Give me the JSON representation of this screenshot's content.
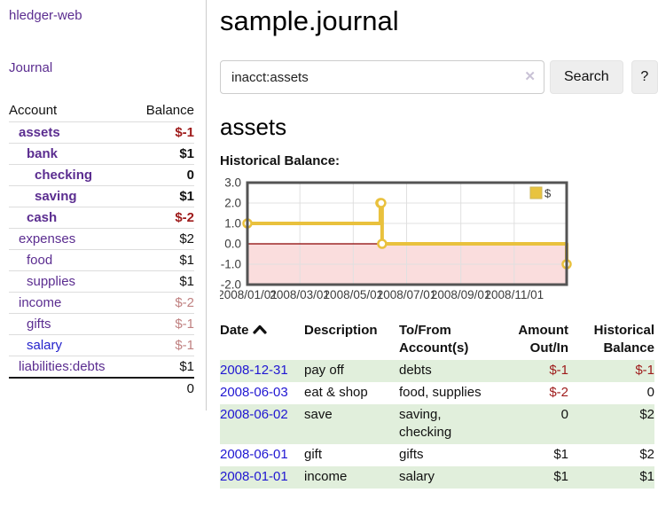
{
  "app": {
    "brand": "hledger-web",
    "nav": {
      "journal": "Journal"
    }
  },
  "colors": {
    "link_purple": "#5b2d90",
    "link_blue": "#2422cc",
    "date_blue": "#2017d2",
    "negative_strong": "#9e1a1a",
    "negative_soft": "#c08181",
    "row_green": "#e1efdc",
    "chart_gold": "#e9c13d",
    "chart_zero_line": "#8b0000",
    "chart_negative_region": "#fadddd"
  },
  "sidebar": {
    "columns": {
      "account": "Account",
      "balance": "Balance"
    },
    "rows": [
      {
        "name": "assets",
        "level": 1,
        "bold": true,
        "balance": "$-1",
        "balance_style": "neg-strong"
      },
      {
        "name": "bank",
        "level": 2,
        "bold": true,
        "balance": "$1",
        "balance_style": "normal"
      },
      {
        "name": "checking",
        "level": 3,
        "bold": true,
        "balance": "0",
        "balance_style": "normal"
      },
      {
        "name": "saving",
        "level": 3,
        "bold": true,
        "balance": "$1",
        "balance_style": "normal"
      },
      {
        "name": "cash",
        "level": 2,
        "bold": true,
        "balance": "$-2",
        "balance_style": "neg-strong"
      },
      {
        "name": "expenses",
        "level": 1,
        "bold": false,
        "balance": "$2",
        "balance_style": "normal"
      },
      {
        "name": "food",
        "level": 2,
        "bold": false,
        "balance": "$1",
        "balance_style": "normal"
      },
      {
        "name": "supplies",
        "level": 2,
        "bold": false,
        "balance": "$1",
        "balance_style": "normal"
      },
      {
        "name": "income",
        "level": 1,
        "bold": false,
        "balance": "$-2",
        "balance_style": "neg-soft"
      },
      {
        "name": "gifts",
        "level": 2,
        "bold": false,
        "balance": "$-1",
        "balance_style": "neg-soft"
      },
      {
        "name": "salary",
        "level": 2,
        "bold": false,
        "balance": "$-1",
        "balance_style": "neg-soft",
        "link_style": "blue"
      },
      {
        "name": "liabilities:debts",
        "level": 1,
        "bold": false,
        "balance": "$1",
        "balance_style": "normal"
      }
    ],
    "total": "0"
  },
  "main": {
    "title": "sample.journal",
    "search": {
      "value": "inacct:assets",
      "clear_icon": "✕",
      "button": "Search",
      "help_button": "?"
    },
    "account_heading": "assets",
    "chart_heading": "Historical Balance:"
  },
  "chart_data": {
    "type": "line",
    "step": true,
    "title": "Historical Balance:",
    "x_range": [
      "2008-01-01",
      "2008-12-31"
    ],
    "ylim": [
      -2,
      3
    ],
    "grid": true,
    "y_ticks": [
      {
        "label": "3.0",
        "value": 3
      },
      {
        "label": "2.0",
        "value": 2
      },
      {
        "label": "1.0",
        "value": 1
      },
      {
        "label": "0.0",
        "value": 0
      },
      {
        "label": "-1.0",
        "value": -1
      },
      {
        "label": "-2.0",
        "value": -2
      }
    ],
    "x_ticks": [
      {
        "label": "2008/01/01",
        "date": "2008-01-01"
      },
      {
        "label": "2008/03/01",
        "date": "2008-03-01"
      },
      {
        "label": "2008/05/01",
        "date": "2008-05-01"
      },
      {
        "label": "2008/07/01",
        "date": "2008-07-01"
      },
      {
        "label": "2008/09/01",
        "date": "2008-09-01"
      },
      {
        "label": "2008/11/01",
        "date": "2008-11-01"
      }
    ],
    "legend": {
      "position": "top-right",
      "entries": [
        {
          "label": "$",
          "color": "#e8c33f"
        }
      ]
    },
    "series": [
      {
        "name": "$",
        "color": "#e9c13d",
        "points": [
          {
            "x": "2008-01-01",
            "y": 1
          },
          {
            "x": "2008-06-01",
            "y": 2
          },
          {
            "x": "2008-06-02",
            "y": 2
          },
          {
            "x": "2008-06-03",
            "y": 0
          },
          {
            "x": "2008-12-31",
            "y": -1
          }
        ]
      }
    ],
    "zero_line_color": "#8b0000",
    "negative_region_color": "#fadddd"
  },
  "transactions": {
    "columns": [
      {
        "label": "Date",
        "sort": "asc",
        "align": "left"
      },
      {
        "label": "Description",
        "align": "left"
      },
      {
        "label": "To/From Account(s)",
        "align": "left"
      },
      {
        "label": "Amount Out/In",
        "align": "right"
      },
      {
        "label": "Historical Balance",
        "align": "right"
      }
    ],
    "rows": [
      {
        "date": "2008-12-31",
        "description": "pay off",
        "accounts": "debts",
        "amount": "$-1",
        "amount_neg": true,
        "balance": "$-1",
        "balance_neg": true,
        "shaded": true
      },
      {
        "date": "2008-06-03",
        "description": "eat & shop",
        "accounts": "food, supplies",
        "amount": "$-2",
        "amount_neg": true,
        "balance": "0",
        "balance_neg": false,
        "shaded": false
      },
      {
        "date": "2008-06-02",
        "description": "save",
        "accounts": "saving, checking",
        "amount": "0",
        "amount_neg": false,
        "balance": "$2",
        "balance_neg": false,
        "shaded": true
      },
      {
        "date": "2008-06-01",
        "description": "gift",
        "accounts": "gifts",
        "amount": "$1",
        "amount_neg": false,
        "balance": "$2",
        "balance_neg": false,
        "shaded": false
      },
      {
        "date": "2008-01-01",
        "description": "income",
        "accounts": "salary",
        "amount": "$1",
        "amount_neg": false,
        "balance": "$1",
        "balance_neg": false,
        "shaded": true
      }
    ]
  }
}
